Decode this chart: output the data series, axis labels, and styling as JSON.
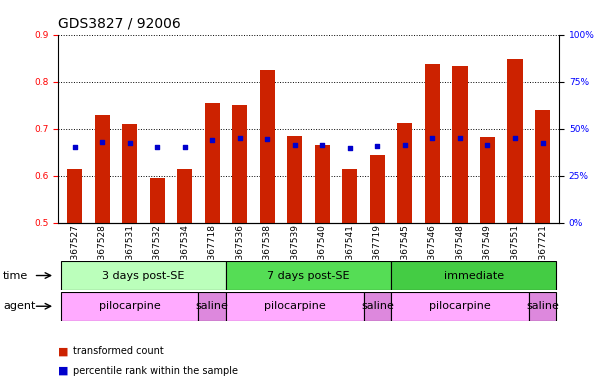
{
  "title": "GDS3827 / 92006",
  "samples": [
    "GSM367527",
    "GSM367528",
    "GSM367531",
    "GSM367532",
    "GSM367534",
    "GSM367718",
    "GSM367536",
    "GSM367538",
    "GSM367539",
    "GSM367540",
    "GSM367541",
    "GSM367719",
    "GSM367545",
    "GSM367546",
    "GSM367548",
    "GSM367549",
    "GSM367551",
    "GSM367721"
  ],
  "red_values": [
    0.615,
    0.73,
    0.71,
    0.595,
    0.615,
    0.755,
    0.75,
    0.825,
    0.685,
    0.665,
    0.615,
    0.643,
    0.713,
    0.838,
    0.833,
    0.683,
    0.848,
    0.74
  ],
  "blue_values": [
    0.66,
    0.672,
    0.67,
    0.66,
    0.66,
    0.675,
    0.68,
    0.678,
    0.665,
    0.665,
    0.658,
    0.663,
    0.665,
    0.68,
    0.68,
    0.665,
    0.68,
    0.67
  ],
  "ylim_left": [
    0.5,
    0.9
  ],
  "ylim_right": [
    0,
    100
  ],
  "yticks_left": [
    0.5,
    0.6,
    0.7,
    0.8,
    0.9
  ],
  "yticks_right": [
    0,
    25,
    50,
    75,
    100
  ],
  "ytick_labels_right": [
    "0%",
    "25%",
    "50%",
    "75%",
    "100%"
  ],
  "bar_color": "#cc2200",
  "dot_color": "#0000cc",
  "time_groups": [
    {
      "label": "3 days post-SE",
      "start": 0,
      "end": 6,
      "color": "#bbffbb"
    },
    {
      "label": "7 days post-SE",
      "start": 6,
      "end": 12,
      "color": "#55dd55"
    },
    {
      "label": "immediate",
      "start": 12,
      "end": 18,
      "color": "#44cc44"
    }
  ],
  "agent_groups": [
    {
      "label": "pilocarpine",
      "start": 0,
      "end": 5,
      "color": "#ffaaff"
    },
    {
      "label": "saline",
      "start": 5,
      "end": 6,
      "color": "#dd88dd"
    },
    {
      "label": "pilocarpine",
      "start": 6,
      "end": 11,
      "color": "#ffaaff"
    },
    {
      "label": "saline",
      "start": 11,
      "end": 12,
      "color": "#dd88dd"
    },
    {
      "label": "pilocarpine",
      "start": 12,
      "end": 17,
      "color": "#ffaaff"
    },
    {
      "label": "saline",
      "start": 17,
      "end": 18,
      "color": "#dd88dd"
    }
  ],
  "legend_red": "transformed count",
  "legend_blue": "percentile rank within the sample",
  "title_fontsize": 10,
  "tick_fontsize": 6.5,
  "row_label_fontsize": 8,
  "group_label_fontsize": 8
}
